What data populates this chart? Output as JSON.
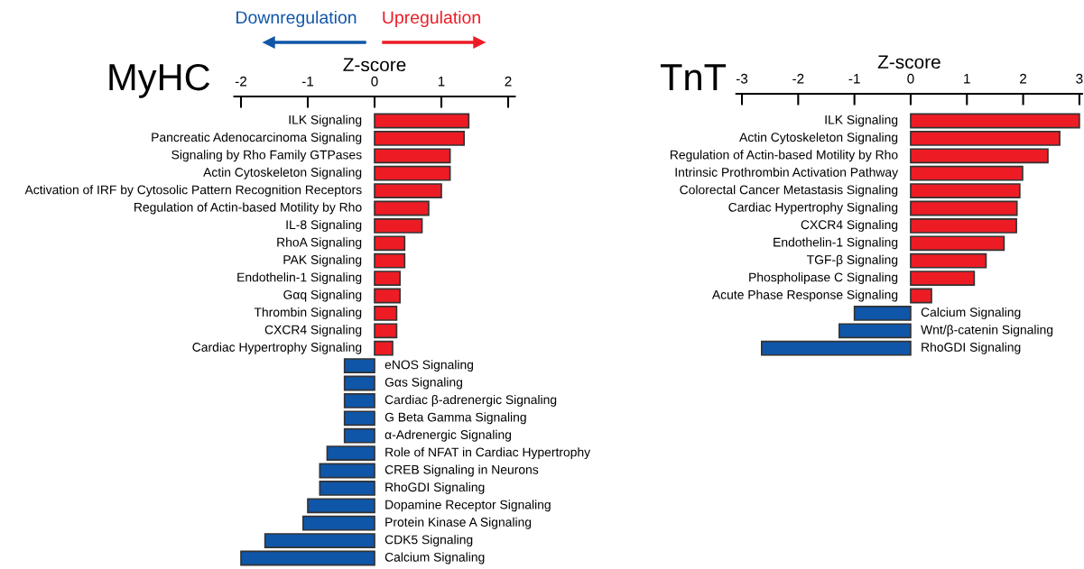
{
  "chart_data": [
    {
      "type": "bar",
      "orientation": "horizontal",
      "title": "MyHC",
      "xlabel": "Z-score",
      "annotations": [
        "Downregulation",
        "Upregulation"
      ],
      "categories": [
        "ILK Signaling",
        "Pancreatic Adenocarcinoma Signaling",
        "Signaling by Rho Family GTPases",
        "Actin Cytoskeleton Signaling",
        "Activation of IRF by Cytosolic Pattern Recognition Receptors",
        "Regulation of Actin-based Motility by Rho",
        "IL-8 Signaling",
        "RhoA Signaling",
        "PAK Signaling",
        "Endothelin-1 Signaling",
        "Gαq Signaling",
        "Thrombin Signaling",
        "CXCR4 Signaling",
        "Cardiac Hypertrophy Signaling",
        "eNOS Signaling",
        "Gαs Signaling",
        "Cardiac β-adrenergic Signaling",
        "G Beta Gamma Signaling",
        "α-Adrenergic Signaling",
        "Role of NFAT in Cardiac Hypertrophy",
        "CREB Signaling in Neurons",
        "RhoGDI Signaling",
        "Dopamine Receptor Signaling",
        "Protein Kinase A Signaling",
        "CDK5 Signaling",
        "Calcium Signaling"
      ],
      "values": [
        1.41,
        1.34,
        1.13,
        1.13,
        1.0,
        0.81,
        0.71,
        0.45,
        0.45,
        0.38,
        0.38,
        0.33,
        0.33,
        0.27,
        -0.45,
        -0.45,
        -0.45,
        -0.45,
        -0.45,
        -0.71,
        -0.82,
        -0.82,
        -1.0,
        -1.07,
        -1.64,
        -2.0
      ],
      "colors": [
        "#ed1c24",
        "#ed1c24",
        "#ed1c24",
        "#ed1c24",
        "#ed1c24",
        "#ed1c24",
        "#ed1c24",
        "#ed1c24",
        "#ed1c24",
        "#ed1c24",
        "#ed1c24",
        "#ed1c24",
        "#ed1c24",
        "#ed1c24",
        "#0f56a8",
        "#0f56a8",
        "#0f56a8",
        "#0f56a8",
        "#0f56a8",
        "#0f56a8",
        "#0f56a8",
        "#0f56a8",
        "#0f56a8",
        "#0f56a8",
        "#0f56a8",
        "#0f56a8"
      ],
      "xlim": [
        -2.1,
        2.1
      ],
      "xticks": [
        -2,
        -1,
        0,
        1,
        2
      ]
    },
    {
      "type": "bar",
      "orientation": "horizontal",
      "title": "TnT",
      "xlabel": "Z-score",
      "categories": [
        "ILK Signaling",
        "Actin Cytoskeleton Signaling",
        "Regulation of Actin-based Motility by Rho",
        "Intrinsic Prothrombin Activation Pathway",
        "Colorectal Cancer Metastasis Signaling",
        "Cardiac Hypertrophy Signaling",
        "CXCR4 Signaling",
        "Endothelin-1 Signaling",
        "TGF-β Signaling",
        "Phospholipase C Signaling",
        "Acute Phase Response Signaling",
        "Calcium Signaling",
        "Wnt/β-catenin Signaling",
        "RhoGDI Signaling"
      ],
      "values": [
        3.0,
        2.65,
        2.44,
        1.99,
        1.94,
        1.89,
        1.88,
        1.66,
        1.34,
        1.13,
        0.37,
        -1.0,
        -1.27,
        -2.65
      ],
      "colors": [
        "#ed1c24",
        "#ed1c24",
        "#ed1c24",
        "#ed1c24",
        "#ed1c24",
        "#ed1c24",
        "#ed1c24",
        "#ed1c24",
        "#ed1c24",
        "#ed1c24",
        "#ed1c24",
        "#0f56a8",
        "#0f56a8",
        "#0f56a8"
      ],
      "xlim": [
        -3.1,
        3.05
      ],
      "xticks": [
        -3,
        -2,
        -1,
        0,
        1,
        2,
        3
      ]
    }
  ]
}
